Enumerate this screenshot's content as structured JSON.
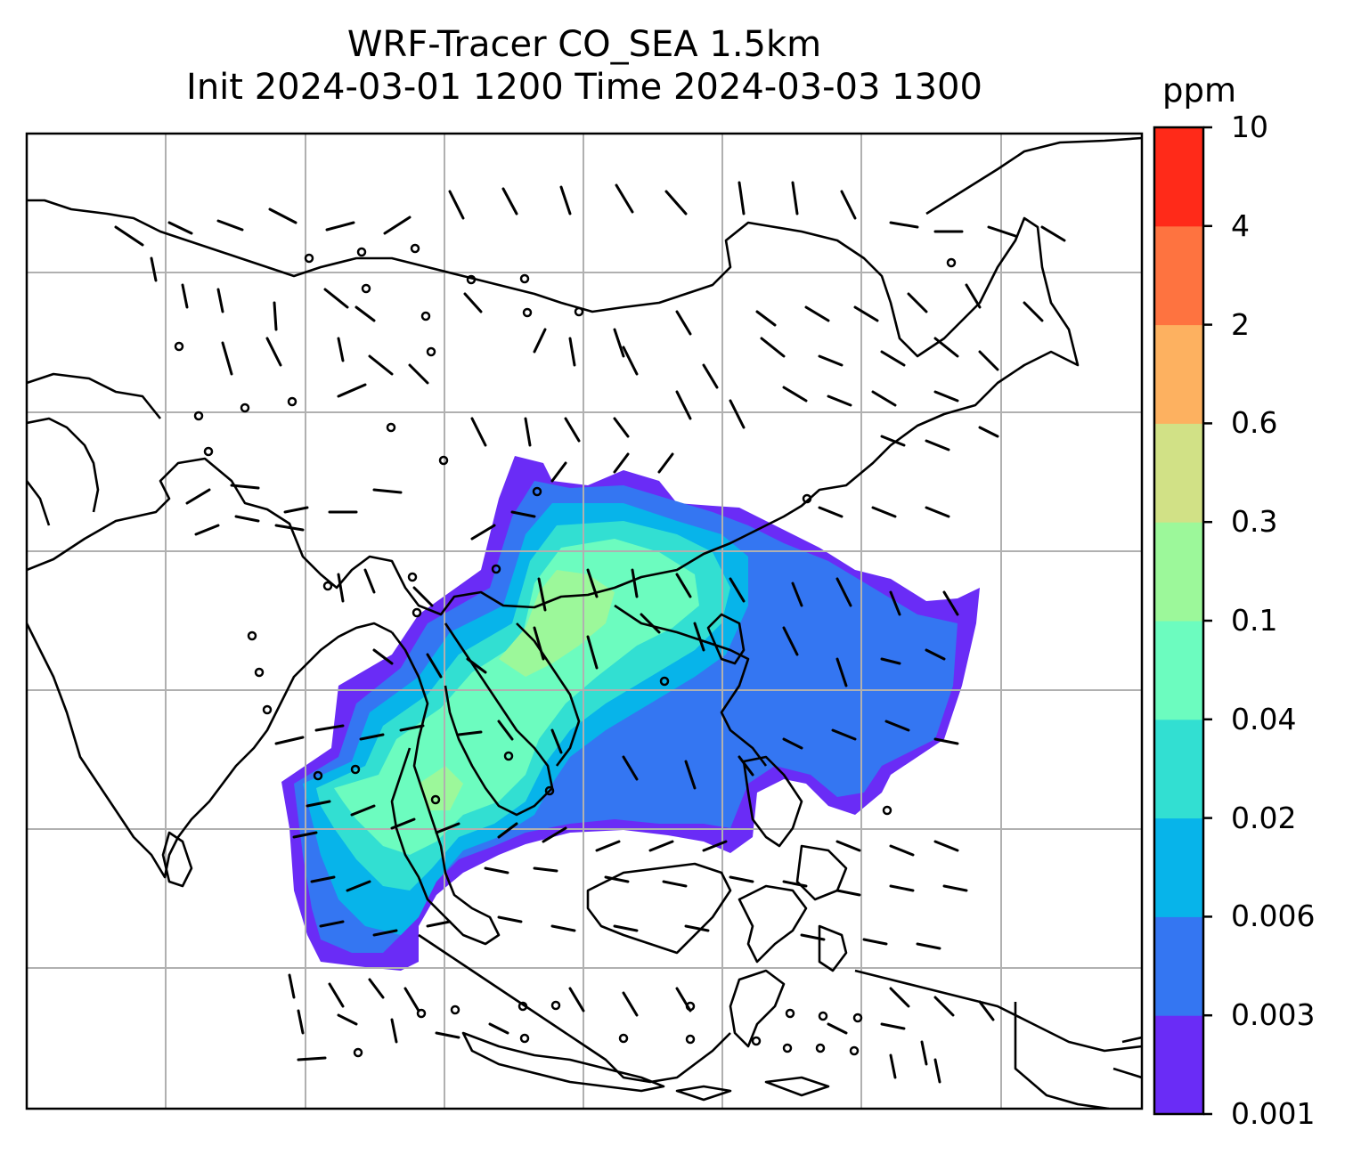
{
  "title": {
    "line1": "WRF-Tracer CO_SEA 1.5km",
    "line2": "Init 2024-03-01 1200 Time 2024-03-03 1300"
  },
  "colorbar": {
    "unit": "ppm",
    "levels": [
      "0.001",
      "0.003",
      "0.006",
      "0.02",
      "0.04",
      "0.1",
      "0.3",
      "0.6",
      "2",
      "4",
      "10"
    ],
    "colors": [
      "#6a2cf6",
      "#3476f2",
      "#07b4ea",
      "#32dfd2",
      "#6cfcbf",
      "#9cf89a",
      "#d1e186",
      "#fdb160",
      "#fe7340",
      "#ff2a19"
    ]
  },
  "map": {
    "coastline_color": "#000000",
    "grid_color": "#b0b0b0",
    "wind_barb_color": "#000000"
  }
}
